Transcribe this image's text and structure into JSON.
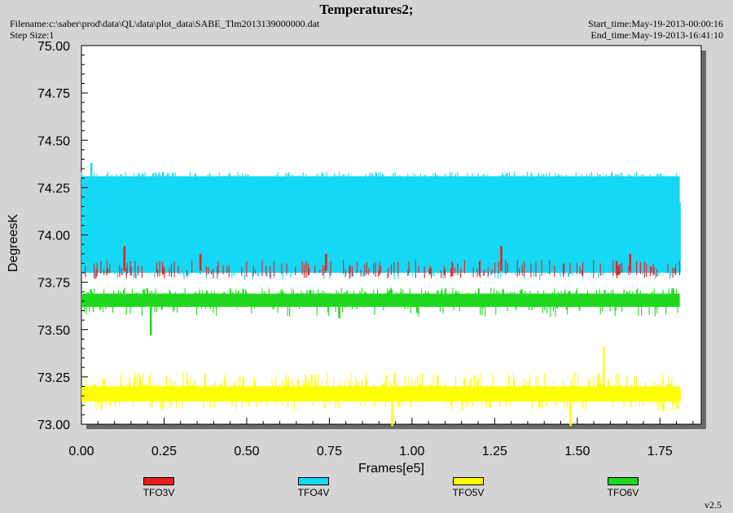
{
  "header": {
    "title": "Temperatures2;",
    "filename": "Filename:c:\\saber\\prod\\data\\QL\\data\\plot_data\\SABE_Tlm2013139000000.dat",
    "step_size": "Step Size:1",
    "start_time": "Start_time:May-19-2013-00:00:16",
    "end_time": "End_time:May-19-2013-16:41:10",
    "version": "v2.5"
  },
  "chart_data": {
    "type": "line",
    "title": "Temperatures2;",
    "xlabel": "Frames[e5]",
    "ylabel": "DegreesK",
    "xlim": [
      0,
      1.875
    ],
    "ylim": [
      73.0,
      75.0
    ],
    "x_ticks": [
      "0.00",
      "0.25",
      "0.50",
      "0.75",
      "1.00",
      "1.25",
      "1.50",
      "1.75"
    ],
    "y_ticks": [
      "73.00",
      "73.25",
      "73.50",
      "73.75",
      "74.00",
      "74.25",
      "74.50",
      "74.75",
      "75.00"
    ],
    "grid": false,
    "legend_position": "bottom",
    "series": [
      {
        "name": "TFO4V",
        "color": "#14d8f4",
        "x_range": [
          0.0,
          1.81
        ],
        "baseline_low": 73.8,
        "baseline_high": 74.31,
        "min": 73.69,
        "max": 74.38,
        "points": [
          [
            0.0,
            74.31
          ],
          [
            0.03,
            74.38
          ],
          [
            0.5,
            74.31
          ],
          [
            0.86,
            73.95
          ],
          [
            1.0,
            74.31
          ],
          [
            1.5,
            74.31
          ],
          [
            1.8,
            74.25
          ],
          [
            1.81,
            74.17
          ]
        ]
      },
      {
        "name": "TFO3V",
        "color": "#ec1c1c",
        "x_range": [
          0.0,
          1.81
        ],
        "baseline_low": 73.75,
        "baseline_high": 73.81,
        "min": 73.7,
        "max": 73.94,
        "points": [
          [
            0.13,
            73.94
          ],
          [
            0.36,
            73.9
          ],
          [
            0.74,
            73.9
          ],
          [
            1.27,
            73.94
          ],
          [
            1.66,
            73.9
          ]
        ]
      },
      {
        "name": "TFO6V",
        "color": "#1ed81e",
        "x_range": [
          0.0,
          1.81
        ],
        "baseline_low": 73.62,
        "baseline_high": 73.69,
        "min": 73.47,
        "max": 73.78,
        "points": [
          [
            0.0,
            73.69
          ],
          [
            0.21,
            73.47
          ],
          [
            0.78,
            73.56
          ],
          [
            1.5,
            73.69
          ],
          [
            1.81,
            73.62
          ]
        ]
      },
      {
        "name": "TFO5V",
        "color": "#ffff00",
        "x_range": [
          0.0,
          1.81
        ],
        "baseline_low": 73.12,
        "baseline_high": 73.2,
        "min": 72.99,
        "max": 73.41,
        "points": [
          [
            0.0,
            73.2
          ],
          [
            0.94,
            72.99
          ],
          [
            1.48,
            72.99
          ],
          [
            1.58,
            73.41
          ],
          [
            1.76,
            73.07
          ],
          [
            1.81,
            73.18
          ]
        ]
      }
    ]
  }
}
